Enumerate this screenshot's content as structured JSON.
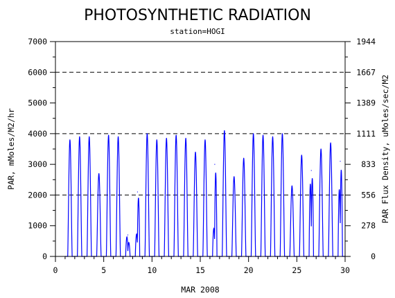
{
  "chart_data": {
    "type": "line",
    "title": "PHOTOSYNTHETIC RADIATION",
    "subtitle": "station=HOGI",
    "xlabel": "MAR 2008",
    "ylabel": "PAR, mMoles/M2/hr",
    "ylabel_right": "PAR Flux Density, uMoles/sec/M2",
    "xlim": [
      0,
      30
    ],
    "ylim": [
      0,
      7000
    ],
    "x_ticks": [
      0,
      5,
      10,
      15,
      20,
      25,
      30
    ],
    "x_tick_labels": [
      "0",
      "5",
      "10",
      "15",
      "20",
      "25",
      "30"
    ],
    "y_ticks": [
      0,
      1000,
      2000,
      3000,
      4000,
      5000,
      6000,
      7000
    ],
    "y_tick_labels": [
      "0",
      "1000",
      "2000",
      "3000",
      "4000",
      "5000",
      "6000",
      "7000"
    ],
    "y2_ticks": [
      0,
      1000,
      2000,
      3000,
      4000,
      5000,
      6000,
      7000
    ],
    "y2_tick_labels": [
      "0",
      "278",
      "556",
      "833",
      "1111",
      "1389",
      "1667",
      "1944"
    ],
    "reference_lines": [
      2000,
      4000,
      6000
    ],
    "grid": false,
    "line_color": "#0000ff",
    "daily_peaks": [
      {
        "day": 1.5,
        "peaks": [
          3800
        ]
      },
      {
        "day": 2.5,
        "peaks": [
          3900
        ]
      },
      {
        "day": 3.5,
        "peaks": [
          3900
        ]
      },
      {
        "day": 4.5,
        "peaks": [
          2700
        ]
      },
      {
        "day": 5.5,
        "peaks": [
          3950
        ]
      },
      {
        "day": 6.5,
        "peaks": [
          3900
        ]
      },
      {
        "day": 7.5,
        "peaks": [
          700,
          500
        ]
      },
      {
        "day": 8.5,
        "peaks": [
          800,
          2100
        ]
      },
      {
        "day": 9.5,
        "peaks": [
          4000
        ]
      },
      {
        "day": 10.5,
        "peaks": [
          3800
        ]
      },
      {
        "day": 11.5,
        "peaks": [
          3850
        ]
      },
      {
        "day": 12.5,
        "peaks": [
          3950
        ]
      },
      {
        "day": 13.5,
        "peaks": [
          3850
        ]
      },
      {
        "day": 14.5,
        "peaks": [
          3400
        ]
      },
      {
        "day": 15.5,
        "peaks": [
          3800
        ]
      },
      {
        "day": 16.5,
        "peaks": [
          1000,
          3000
        ]
      },
      {
        "day": 17.5,
        "peaks": [
          4100
        ]
      },
      {
        "day": 18.5,
        "peaks": [
          2600
        ]
      },
      {
        "day": 19.5,
        "peaks": [
          3200
        ]
      },
      {
        "day": 20.5,
        "peaks": [
          4000
        ]
      },
      {
        "day": 21.5,
        "peaks": [
          3950
        ]
      },
      {
        "day": 22.5,
        "peaks": [
          3900
        ]
      },
      {
        "day": 23.5,
        "peaks": [
          4000
        ]
      },
      {
        "day": 24.5,
        "peaks": [
          2300
        ]
      },
      {
        "day": 25.5,
        "peaks": [
          3300
        ]
      },
      {
        "day": 26.5,
        "peaks": [
          2600,
          2800
        ]
      },
      {
        "day": 27.5,
        "peaks": [
          3500
        ]
      },
      {
        "day": 28.5,
        "peaks": [
          3700
        ]
      },
      {
        "day": 29.5,
        "peaks": [
          2400,
          3100
        ]
      }
    ]
  }
}
